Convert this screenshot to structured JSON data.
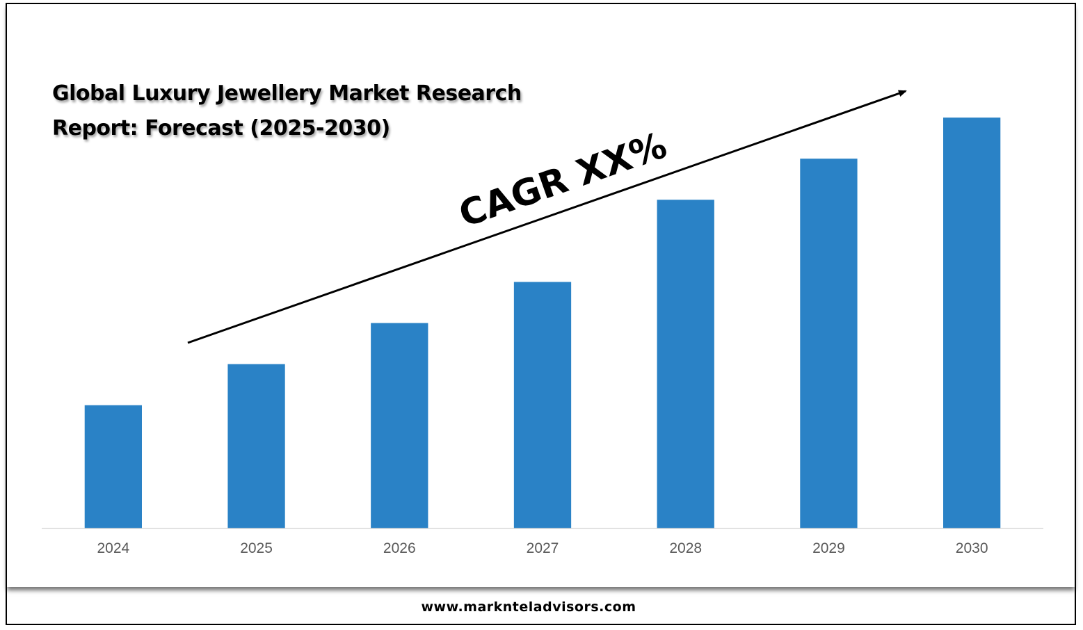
{
  "chart_data": {
    "type": "bar",
    "title": "Global Luxury Jewellery Market Research Report: Forecast (2025-2030)",
    "categories": [
      "2024",
      "2025",
      "2026",
      "2027",
      "2028",
      "2029",
      "2030"
    ],
    "values": [
      3.0,
      4.0,
      5.0,
      6.0,
      8.0,
      9.0,
      10.0
    ],
    "ylim": [
      0,
      11
    ],
    "xlabel": "",
    "ylabel": "",
    "bar_color": "#2a82c6",
    "grid": false,
    "legend": "none",
    "annotation": "CAGR XX%"
  },
  "footer": {
    "url": "www.marknteladvisors.com"
  }
}
